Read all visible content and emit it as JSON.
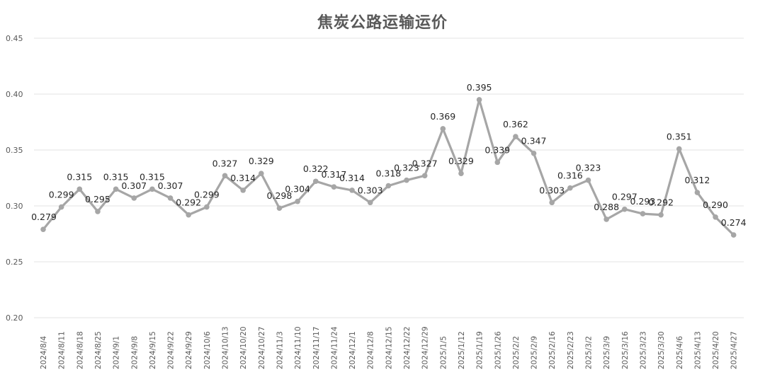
{
  "chart_data": {
    "type": "line",
    "title": "焦炭公路运输运价",
    "xlabel": "",
    "ylabel": "",
    "ylim": [
      0.2,
      0.45
    ],
    "yticks": [
      "0.20",
      "0.25",
      "0.30",
      "0.35",
      "0.40",
      "0.45"
    ],
    "grid": true,
    "legend": "none",
    "line_color": "#a6a6a6",
    "categories": [
      "2024/8/4",
      "2024/8/11",
      "2024/8/18",
      "2024/8/25",
      "2024/9/1",
      "2024/9/8",
      "2024/9/15",
      "2024/9/22",
      "2024/9/29",
      "2024/10/6",
      "2024/10/13",
      "2024/10/20",
      "2024/10/27",
      "2024/11/3",
      "2024/11/10",
      "2024/11/17",
      "2024/11/24",
      "2024/12/1",
      "2024/12/8",
      "2024/12/15",
      "2024/12/22",
      "2024/12/29",
      "2025/1/5",
      "2025/1/12",
      "2025/1/19",
      "2025/1/26",
      "2025/2/2",
      "2025/2/9",
      "2025/2/16",
      "2025/2/23",
      "2025/3/2",
      "2025/3/9",
      "2025/3/16",
      "2025/3/23",
      "2025/3/30",
      "2025/4/6",
      "2025/4/13",
      "2025/4/20",
      "2025/4/27"
    ],
    "series": [
      {
        "values": [
          0.279,
          0.299,
          0.315,
          0.295,
          0.315,
          0.307,
          0.315,
          0.307,
          0.292,
          0.299,
          0.327,
          0.314,
          0.329,
          0.298,
          0.304,
          0.322,
          0.317,
          0.314,
          0.303,
          0.318,
          0.323,
          0.327,
          0.369,
          0.329,
          0.395,
          0.339,
          0.362,
          0.347,
          0.303,
          0.316,
          0.323,
          0.288,
          0.297,
          0.293,
          0.292,
          0.351,
          0.312,
          0.29,
          0.274
        ],
        "labels": [
          "0.279",
          "0.299",
          "0.315",
          "0.295",
          "0.315",
          "0.307",
          "0.315",
          "0.307",
          "0.292",
          "0.299",
          "0.327",
          "0.314",
          "0.329",
          "0.298",
          "0.304",
          "0.322",
          "0.317",
          "0.314",
          "0.303",
          "0.318",
          "0.323",
          "0.327",
          "0.369",
          "0.329",
          "0.395",
          "0.339",
          "0.362",
          "0.347",
          "0.303",
          "0.316",
          "0.323",
          "0.288",
          "0.297",
          "0.293",
          "0.292",
          "0.351",
          "0.312",
          "0.290",
          "0.274"
        ]
      }
    ]
  }
}
